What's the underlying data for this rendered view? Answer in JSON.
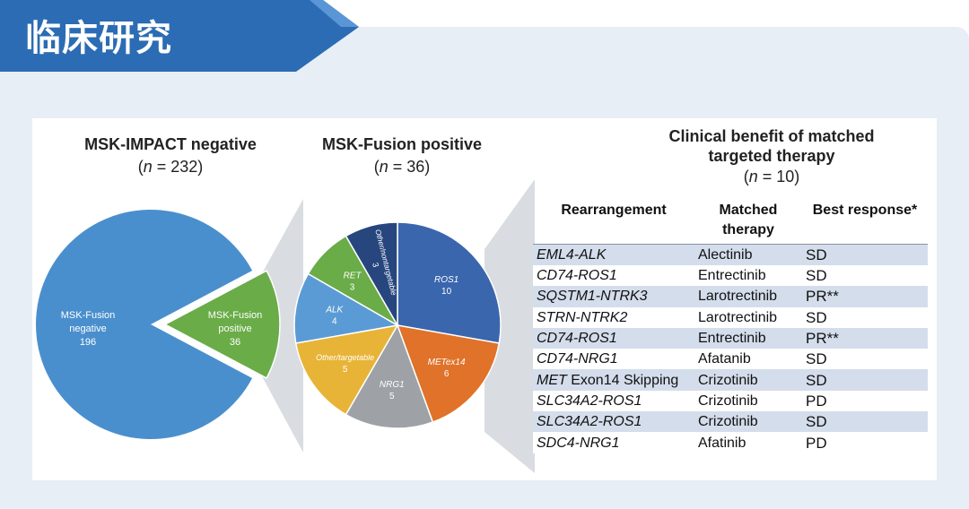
{
  "header": {
    "title": "临床研究",
    "banner_color": "#2b6cb4"
  },
  "colors": {
    "slide_bg": "#e8eef6",
    "blue_pie": "#4a8fcd",
    "green": "#6aac48",
    "ros1": "#3a66ad",
    "met": "#e0722a",
    "nrg1": "#9ea2a6",
    "other_targetable": "#e8b437",
    "alk": "#5b9bd5",
    "ret": "#6aac48",
    "other_nontargetable": "#27467e",
    "table_stripe": "#d4ddeb"
  },
  "chart_data": [
    {
      "type": "pie",
      "title": "MSK-IMPACT negative",
      "subtitle_n_label": "n",
      "subtitle_value": "= 232",
      "slices": [
        {
          "label": "MSK-Fusion negative",
          "label_line1": "MSK-Fusion",
          "label_line2": "negative",
          "value": 196,
          "value_text": "196"
        },
        {
          "label": "MSK-Fusion positive",
          "label_line1": "MSK-Fusion",
          "label_line2": "positive",
          "value": 36,
          "value_text": "36"
        }
      ]
    },
    {
      "type": "pie",
      "title": "MSK-Fusion positive",
      "subtitle_n_label": "n",
      "subtitle_value": "= 36",
      "slices": [
        {
          "label": "ROS1",
          "value": 10,
          "value_text": "10"
        },
        {
          "label": "METex14",
          "value": 6,
          "value_text": "6"
        },
        {
          "label": "NRG1",
          "value": 5,
          "value_text": "5"
        },
        {
          "label": "Other/targetable",
          "value": 5,
          "value_text": "5"
        },
        {
          "label": "ALK",
          "value": 4,
          "value_text": "4"
        },
        {
          "label": "RET",
          "value": 3,
          "value_text": "3"
        },
        {
          "label": "Other/nontargetable",
          "value": 3,
          "value_text": "3"
        }
      ]
    },
    {
      "type": "table",
      "title_line1": "Clinical benefit of matched",
      "title_line2": "targeted therapy",
      "subtitle_n_label": "n",
      "subtitle_value": "= 10",
      "columns": {
        "rearrangement": "Rearrangement",
        "therapy": "Matched therapy",
        "response": "Best response*"
      },
      "rows": [
        {
          "gene": "EML4-ALK",
          "gene_suffix": "",
          "therapy": "Alectinib",
          "response": "SD"
        },
        {
          "gene": "CD74-ROS1",
          "gene_suffix": "",
          "therapy": "Entrectinib",
          "response": "SD"
        },
        {
          "gene": "SQSTM1-NTRK3",
          "gene_suffix": "",
          "therapy": "Larotrectinib",
          "response": "PR**"
        },
        {
          "gene": "STRN-NTRK2",
          "gene_suffix": "",
          "therapy": "Larotrectinib",
          "response": "SD"
        },
        {
          "gene": "CD74-ROS1",
          "gene_suffix": "",
          "therapy": "Entrectinib",
          "response": "PR**"
        },
        {
          "gene": "CD74-NRG1",
          "gene_suffix": "",
          "therapy": "Afatanib",
          "response": "SD"
        },
        {
          "gene": "MET",
          "gene_suffix": " Exon14 Skipping",
          "therapy": "Crizotinib",
          "response": "SD"
        },
        {
          "gene": "SLC34A2-ROS1",
          "gene_suffix": "",
          "therapy": "Crizotinib",
          "response": "PD"
        },
        {
          "gene": "SLC34A2-ROS1",
          "gene_suffix": "",
          "therapy": "Crizotinib",
          "response": "SD"
        },
        {
          "gene": "SDC4-NRG1",
          "gene_suffix": "",
          "therapy": "Afatinib",
          "response": "PD"
        }
      ]
    }
  ]
}
